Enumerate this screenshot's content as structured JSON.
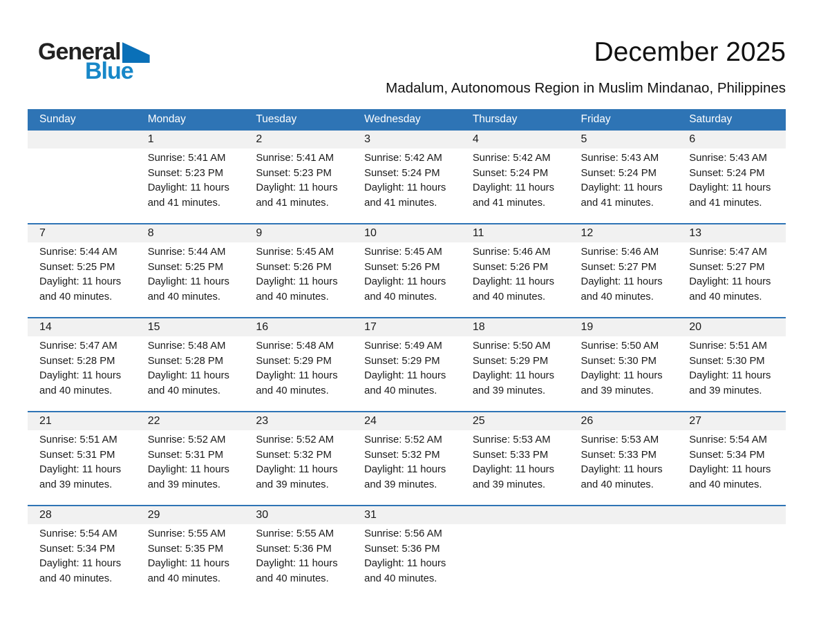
{
  "logo": {
    "part1": "General",
    "part2": "Blue"
  },
  "header": {
    "title": "December 2025",
    "subtitle": "Madalum, Autonomous Region in Muslim Mindanao, Philippines"
  },
  "colors": {
    "accent_blue": "#2e74b5",
    "day_band_gray": "#f1f1f1",
    "logo_text_dark": "#222222",
    "logo_blue": "#1787c8",
    "logo_triangle_blue": "#0a70b8",
    "header_text": "#ffffff"
  },
  "calendar": {
    "day_headers": [
      "Sunday",
      "Monday",
      "Tuesday",
      "Wednesday",
      "Thursday",
      "Friday",
      "Saturday"
    ],
    "labels": {
      "sunrise": "Sunrise:",
      "sunset": "Sunset:",
      "daylight": "Daylight:"
    },
    "weeks": [
      [
        null,
        {
          "day": "1",
          "sunrise": "5:41 AM",
          "sunset": "5:23 PM",
          "daylight": "11 hours and 41 minutes."
        },
        {
          "day": "2",
          "sunrise": "5:41 AM",
          "sunset": "5:23 PM",
          "daylight": "11 hours and 41 minutes."
        },
        {
          "day": "3",
          "sunrise": "5:42 AM",
          "sunset": "5:24 PM",
          "daylight": "11 hours and 41 minutes."
        },
        {
          "day": "4",
          "sunrise": "5:42 AM",
          "sunset": "5:24 PM",
          "daylight": "11 hours and 41 minutes."
        },
        {
          "day": "5",
          "sunrise": "5:43 AM",
          "sunset": "5:24 PM",
          "daylight": "11 hours and 41 minutes."
        },
        {
          "day": "6",
          "sunrise": "5:43 AM",
          "sunset": "5:24 PM",
          "daylight": "11 hours and 41 minutes."
        }
      ],
      [
        {
          "day": "7",
          "sunrise": "5:44 AM",
          "sunset": "5:25 PM",
          "daylight": "11 hours and 40 minutes."
        },
        {
          "day": "8",
          "sunrise": "5:44 AM",
          "sunset": "5:25 PM",
          "daylight": "11 hours and 40 minutes."
        },
        {
          "day": "9",
          "sunrise": "5:45 AM",
          "sunset": "5:26 PM",
          "daylight": "11 hours and 40 minutes."
        },
        {
          "day": "10",
          "sunrise": "5:45 AM",
          "sunset": "5:26 PM",
          "daylight": "11 hours and 40 minutes."
        },
        {
          "day": "11",
          "sunrise": "5:46 AM",
          "sunset": "5:26 PM",
          "daylight": "11 hours and 40 minutes."
        },
        {
          "day": "12",
          "sunrise": "5:46 AM",
          "sunset": "5:27 PM",
          "daylight": "11 hours and 40 minutes."
        },
        {
          "day": "13",
          "sunrise": "5:47 AM",
          "sunset": "5:27 PM",
          "daylight": "11 hours and 40 minutes."
        }
      ],
      [
        {
          "day": "14",
          "sunrise": "5:47 AM",
          "sunset": "5:28 PM",
          "daylight": "11 hours and 40 minutes."
        },
        {
          "day": "15",
          "sunrise": "5:48 AM",
          "sunset": "5:28 PM",
          "daylight": "11 hours and 40 minutes."
        },
        {
          "day": "16",
          "sunrise": "5:48 AM",
          "sunset": "5:29 PM",
          "daylight": "11 hours and 40 minutes."
        },
        {
          "day": "17",
          "sunrise": "5:49 AM",
          "sunset": "5:29 PM",
          "daylight": "11 hours and 40 minutes."
        },
        {
          "day": "18",
          "sunrise": "5:50 AM",
          "sunset": "5:29 PM",
          "daylight": "11 hours and 39 minutes."
        },
        {
          "day": "19",
          "sunrise": "5:50 AM",
          "sunset": "5:30 PM",
          "daylight": "11 hours and 39 minutes."
        },
        {
          "day": "20",
          "sunrise": "5:51 AM",
          "sunset": "5:30 PM",
          "daylight": "11 hours and 39 minutes."
        }
      ],
      [
        {
          "day": "21",
          "sunrise": "5:51 AM",
          "sunset": "5:31 PM",
          "daylight": "11 hours and 39 minutes."
        },
        {
          "day": "22",
          "sunrise": "5:52 AM",
          "sunset": "5:31 PM",
          "daylight": "11 hours and 39 minutes."
        },
        {
          "day": "23",
          "sunrise": "5:52 AM",
          "sunset": "5:32 PM",
          "daylight": "11 hours and 39 minutes."
        },
        {
          "day": "24",
          "sunrise": "5:52 AM",
          "sunset": "5:32 PM",
          "daylight": "11 hours and 39 minutes."
        },
        {
          "day": "25",
          "sunrise": "5:53 AM",
          "sunset": "5:33 PM",
          "daylight": "11 hours and 39 minutes."
        },
        {
          "day": "26",
          "sunrise": "5:53 AM",
          "sunset": "5:33 PM",
          "daylight": "11 hours and 40 minutes."
        },
        {
          "day": "27",
          "sunrise": "5:54 AM",
          "sunset": "5:34 PM",
          "daylight": "11 hours and 40 minutes."
        }
      ],
      [
        {
          "day": "28",
          "sunrise": "5:54 AM",
          "sunset": "5:34 PM",
          "daylight": "11 hours and 40 minutes."
        },
        {
          "day": "29",
          "sunrise": "5:55 AM",
          "sunset": "5:35 PM",
          "daylight": "11 hours and 40 minutes."
        },
        {
          "day": "30",
          "sunrise": "5:55 AM",
          "sunset": "5:36 PM",
          "daylight": "11 hours and 40 minutes."
        },
        {
          "day": "31",
          "sunrise": "5:56 AM",
          "sunset": "5:36 PM",
          "daylight": "11 hours and 40 minutes."
        },
        null,
        null,
        null
      ]
    ]
  }
}
